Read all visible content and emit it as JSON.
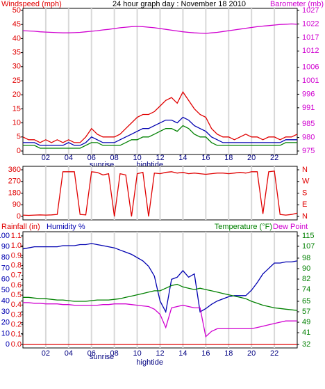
{
  "chart_data": [
    {
      "type": "line",
      "title": "24 hour graph day : November 18 2010",
      "ylabel": "Windspeed (mph)",
      "y2label": "Barometer (mb)",
      "xlim": [
        0,
        24
      ],
      "xticks": [
        {
          "value": 2,
          "label": "02"
        },
        {
          "value": 4,
          "label": "04"
        },
        {
          "value": 6,
          "label": "06"
        },
        {
          "value": 8,
          "label": "08"
        },
        10,
        12,
        14,
        16,
        18,
        20,
        22
      ],
      "ylim": [
        0,
        50
      ],
      "yticks": [
        0,
        5,
        10,
        15,
        20,
        25,
        30,
        35,
        40,
        45,
        50
      ],
      "ycolor": "#e00000",
      "y2lim": [
        975,
        1027
      ],
      "y2ticks": [
        975,
        980,
        985,
        991,
        996,
        1001,
        1006,
        1012,
        1017,
        1022,
        1027
      ],
      "y2color": "#d000d0",
      "annotations": [
        {
          "text": "sunrise",
          "x": 6.9
        },
        {
          "text": "hightide",
          "x": 11.1
        }
      ],
      "x": [
        0,
        0.5,
        1,
        1.5,
        2,
        2.5,
        3,
        3.5,
        4,
        4.5,
        5,
        5.5,
        6,
        6.5,
        7,
        7.5,
        8,
        8.5,
        9,
        9.5,
        10,
        10.5,
        11,
        11.5,
        12,
        12.5,
        13,
        13.5,
        14,
        14.5,
        15,
        15.5,
        16,
        16.5,
        17,
        17.5,
        18,
        18.5,
        19,
        19.5,
        20,
        20.5,
        21,
        21.5,
        22,
        22.5,
        23,
        23.5,
        24
      ],
      "series": [
        {
          "color": "#e00000",
          "values": [
            5,
            4,
            4,
            3,
            4,
            3,
            4,
            3,
            4,
            3,
            3,
            5,
            8,
            6,
            5,
            5,
            5,
            6,
            8,
            10,
            12,
            13,
            13,
            14,
            16,
            18,
            19,
            17,
            21,
            18,
            15,
            13,
            12,
            8,
            6,
            5,
            5,
            4,
            5,
            6,
            5,
            5,
            4,
            5,
            5,
            4,
            5,
            5,
            6
          ]
        },
        {
          "color": "#008000",
          "values": [
            2,
            2,
            2,
            1,
            1,
            1,
            1,
            1,
            1,
            1,
            1,
            2,
            3,
            3,
            2,
            2,
            2,
            2,
            3,
            4,
            4,
            5,
            5,
            6,
            7,
            8,
            8,
            7,
            9,
            8,
            6,
            5,
            5,
            3,
            2,
            2,
            2,
            2,
            2,
            2,
            2,
            2,
            2,
            2,
            2,
            2,
            3,
            3,
            3
          ]
        },
        {
          "color": "#0000b0",
          "values": [
            3,
            3,
            3,
            2,
            2,
            2,
            2,
            2,
            3,
            2,
            2,
            3,
            5,
            4,
            3,
            3,
            3,
            4,
            5,
            6,
            7,
            8,
            8,
            9,
            10,
            11,
            11,
            10,
            12,
            11,
            9,
            8,
            7,
            5,
            4,
            3,
            3,
            3,
            3,
            3,
            3,
            3,
            3,
            3,
            3,
            3,
            4,
            4,
            4
          ]
        },
        {
          "color": "#d000d0",
          "axis": "y2",
          "values": [
            1019.5,
            1019.4,
            1019.3,
            1019.1,
            1019,
            1018.9,
            1018.8,
            1018.7,
            1018.7,
            1018.8,
            1018.9,
            1019.1,
            1019.3,
            1019.5,
            1019.8,
            1020,
            1020.3,
            1020.6,
            1020.8,
            1021,
            1021.1,
            1021,
            1020.8,
            1020.6,
            1020.3,
            1020,
            1019.7,
            1019.4,
            1019.1,
            1018.9,
            1018.7,
            1018.6,
            1018.5,
            1018.7,
            1018.9,
            1019.2,
            1019.5,
            1019.8,
            1020.1,
            1020.4,
            1020.7,
            1021,
            1021.2,
            1021.4,
            1021.6,
            1021.8,
            1021.9,
            1022,
            1021.9
          ]
        }
      ]
    },
    {
      "type": "line",
      "xlim": [
        0,
        24
      ],
      "xticks": [
        {
          "value": 2,
          "label": "02"
        },
        {
          "value": 4,
          "label": "04"
        },
        {
          "value": 6,
          "label": "06"
        },
        {
          "value": 8,
          "label": "08"
        },
        10,
        12,
        14,
        16,
        18,
        20,
        22
      ],
      "ylim": [
        0,
        360
      ],
      "yticks": [
        0,
        90,
        180,
        270,
        360
      ],
      "ycolor": "#e00000",
      "y2lim": [
        0,
        360
      ],
      "y2ticks": [
        {
          "value": 0,
          "label": "N"
        },
        {
          "value": 90,
          "label": "E"
        },
        {
          "value": 180,
          "label": "S"
        },
        {
          "value": 270,
          "label": "W"
        },
        {
          "value": 360,
          "label": "N"
        }
      ],
      "y2color": "#e00000",
      "x": [
        0,
        0.5,
        1,
        1.5,
        2,
        2.5,
        3,
        3.5,
        4,
        4.5,
        5,
        5.5,
        6,
        6.5,
        7,
        7.5,
        8,
        8.5,
        9,
        9.5,
        10,
        10.5,
        11,
        11.5,
        12,
        12.5,
        13,
        13.5,
        14,
        14.5,
        15,
        15.5,
        16,
        16.5,
        17,
        17.5,
        18,
        18.5,
        19,
        19.5,
        20,
        20.5,
        21,
        21.5,
        22,
        22.5,
        23,
        23.5,
        24
      ],
      "series": [
        {
          "color": "#e00000",
          "values": [
            10,
            8,
            10,
            12,
            10,
            12,
            15,
            345,
            345,
            345,
            15,
            12,
            345,
            340,
            320,
            330,
            0,
            330,
            320,
            0,
            330,
            340,
            0,
            335,
            330,
            340,
            345,
            335,
            340,
            330,
            335,
            330,
            325,
            330,
            335,
            335,
            330,
            335,
            340,
            335,
            345,
            345,
            20,
            345,
            350,
            15,
            10,
            15,
            25
          ]
        }
      ]
    },
    {
      "type": "line",
      "ylabel": "Humidity %",
      "y3label": "Rainfall (in)",
      "y2label": "Temperature (°F)",
      "y2label2": "Dew Point",
      "xlim": [
        0,
        24
      ],
      "xticks": [
        {
          "value": 2,
          "label": "02"
        },
        {
          "value": 4,
          "label": "04"
        },
        {
          "value": 6,
          "label": "06"
        },
        {
          "value": 8,
          "label": "08"
        },
        10,
        12,
        14,
        16,
        18,
        20,
        22
      ],
      "ylim": [
        0,
        100
      ],
      "yticks": [
        0,
        10,
        20,
        30,
        40,
        50,
        60,
        70,
        80,
        90,
        100
      ],
      "ycolor": "#0000b0",
      "y3lim": [
        0,
        1.1
      ],
      "y3ticks": [
        {
          "value": 0,
          "label": "0.0"
        },
        0.1,
        0.2,
        0.3,
        0.4,
        0.5,
        0.6,
        0.7,
        0.8,
        0.9,
        {
          "value": 1,
          "label": "1.0"
        },
        1.1
      ],
      "y3color": "#e00000",
      "y2lim": [
        32,
        115
      ],
      "y2ticks": [
        32,
        41,
        49,
        57,
        65,
        74,
        82,
        90,
        98,
        107,
        115
      ],
      "y2color": "#008000",
      "annotations": [
        {
          "text": "sunrise",
          "x": 6.9
        },
        {
          "text": "hightide",
          "x": 11.1
        }
      ],
      "x": [
        0,
        0.5,
        1,
        1.5,
        2,
        2.5,
        3,
        3.5,
        4,
        4.5,
        5,
        5.5,
        6,
        6.5,
        7,
        7.5,
        8,
        8.5,
        9,
        9.5,
        10,
        10.5,
        11,
        11.5,
        12,
        12.5,
        13,
        13.5,
        14,
        14.5,
        15,
        15.5,
        16,
        16.5,
        17,
        17.5,
        18,
        18.5,
        19,
        19.5,
        20,
        20.5,
        21,
        21.5,
        22,
        22.5,
        23,
        23.5,
        24
      ],
      "series": [
        {
          "color": "#e00000",
          "axis": "y3",
          "values": [
            0,
            0,
            0,
            0,
            0,
            0,
            0,
            0,
            0,
            0,
            0,
            0,
            0,
            0,
            0,
            0,
            0,
            0,
            0,
            0,
            0,
            0,
            0,
            0,
            0,
            0,
            0,
            0,
            0,
            0,
            0,
            0,
            0,
            0,
            0,
            0,
            0,
            0,
            0,
            0,
            0,
            0,
            0,
            0,
            0,
            0,
            0,
            0,
            0
          ]
        },
        {
          "color": "#0000b0",
          "values": [
            88,
            89,
            90,
            90,
            90,
            90,
            90,
            91,
            91,
            91,
            92,
            92,
            93,
            92,
            91,
            90,
            89,
            87,
            85,
            83,
            80,
            77,
            72,
            63,
            40,
            30,
            60,
            62,
            68,
            62,
            65,
            30,
            33,
            37,
            40,
            42,
            44,
            45,
            45,
            45,
            50,
            57,
            65,
            70,
            75,
            75,
            76,
            76,
            77
          ]
        },
        {
          "color": "#008000",
          "axis": "y2",
          "values": [
            68,
            68,
            67.5,
            67,
            67,
            66.5,
            66,
            66,
            65.5,
            65,
            65,
            65,
            65.5,
            66,
            66,
            66,
            66.5,
            67,
            68,
            69,
            70,
            71,
            72,
            73,
            73,
            75,
            77,
            78,
            76,
            75,
            74,
            75,
            74,
            73,
            72,
            71,
            70,
            69,
            68,
            67,
            65,
            63.5,
            62,
            61,
            60,
            59.5,
            59,
            58.5,
            58
          ]
        },
        {
          "color": "#d000d0",
          "axis": "y2",
          "values": [
            64,
            64,
            63.5,
            63.5,
            63,
            63,
            63,
            62.5,
            62.5,
            62,
            62,
            62,
            62,
            62,
            62.5,
            62.5,
            63,
            63,
            63,
            62.5,
            62,
            61.5,
            61,
            59,
            55,
            45,
            60,
            61,
            62,
            61,
            60,
            60,
            38,
            42,
            44,
            44,
            44,
            44,
            44,
            44,
            44,
            45,
            46,
            47,
            48,
            49,
            50,
            50,
            50
          ]
        }
      ]
    }
  ]
}
